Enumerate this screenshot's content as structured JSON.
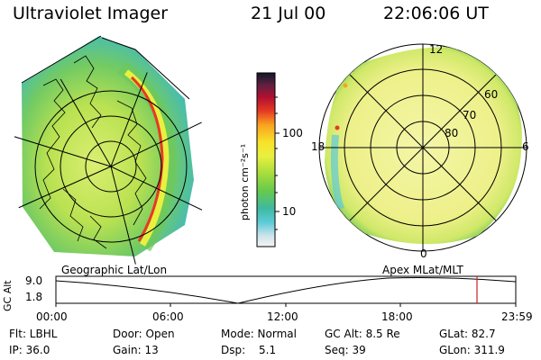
{
  "header": {
    "title": "Ultraviolet Imager",
    "date": "21 Jul 00",
    "time": "22:06:06 UT"
  },
  "left_panel": {
    "caption": "Geographic Lat/Lon"
  },
  "right_panel": {
    "caption": "Apex MLat/MLT",
    "mlt_labels": [
      "12",
      "18",
      "6",
      "0"
    ],
    "lat_labels": [
      "60",
      "70",
      "80"
    ]
  },
  "colorbar": {
    "unit_label": "photon cm⁻²s⁻¹",
    "ticks": [
      "100",
      "10"
    ],
    "scale": "log"
  },
  "timeline": {
    "ylabel": "GC Alt",
    "y_ticks": [
      "9.0",
      "1.8"
    ],
    "x_ticks": [
      "00:00",
      "06:00",
      "12:00",
      "18:00",
      "23:59"
    ],
    "current_marker_color": "#cc2222"
  },
  "status": {
    "row1": [
      "Flt: LBHL",
      "Door: Open",
      "Mode: Normal",
      "GC Alt: 8.5 Re",
      "GLat: 82.7"
    ],
    "row2": [
      "IP: 36.0",
      "Gain: 13",
      "Dsp:",
      "5.1",
      "Seq: 39",
      "GLon: 311.9"
    ]
  }
}
